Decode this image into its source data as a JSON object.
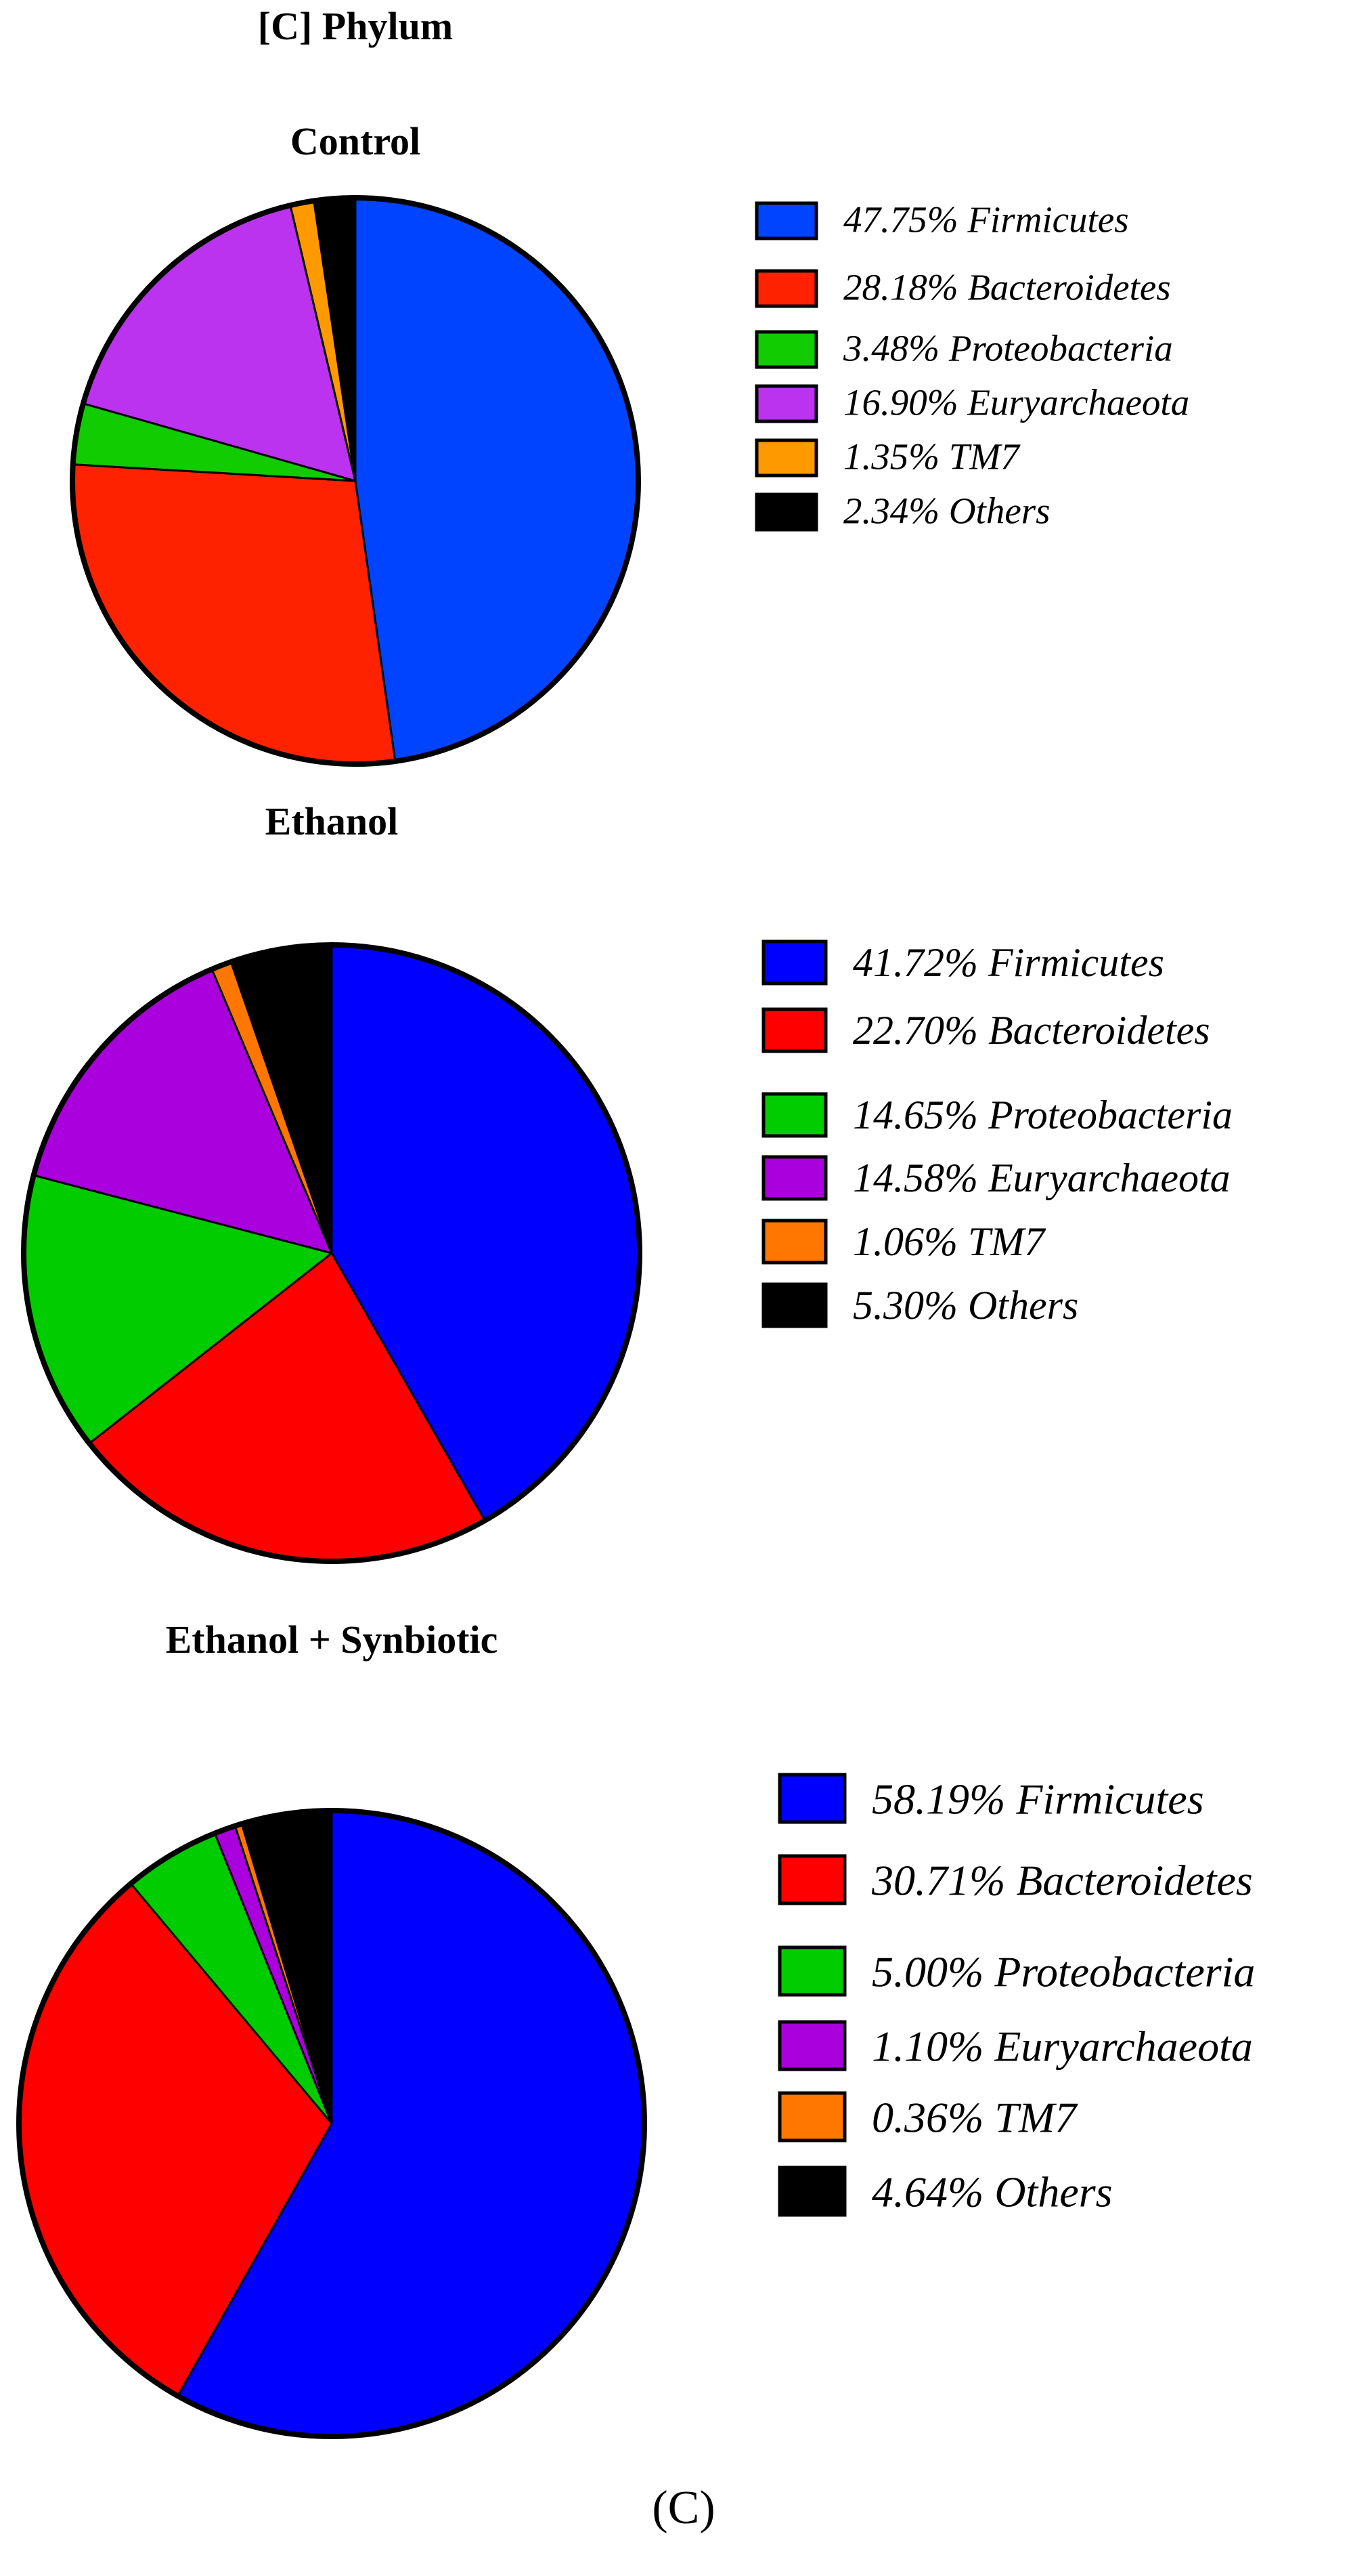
{
  "figure": {
    "panel_title": "[C] Phylum",
    "panel_caption": "(C)"
  },
  "chart_data": [
    {
      "type": "pie",
      "title": "Control",
      "start": "12 o'clock, clockwise",
      "categories": [
        "Firmicutes",
        "Bacteroidetes",
        "Proteobacteria",
        "Euryarchaeota",
        "TM7",
        "Others"
      ],
      "values": [
        47.75,
        28.18,
        3.48,
        16.9,
        1.35,
        2.34
      ],
      "legend_labels": [
        "47.75%  Firmicutes",
        "28.18%  Bacteroidetes",
        "3.48%  Proteobacteria",
        "16.90%  Euryarchaeota",
        "1.35%  TM7",
        "2.34%  Others"
      ],
      "colors": [
        "#0044ff",
        "#ff2200",
        "#11cc00",
        "#bb33ee",
        "#ff9900",
        "#000000"
      ],
      "legend_placement": "right"
    },
    {
      "type": "pie",
      "title": "Ethanol",
      "start": "12 o'clock, clockwise",
      "categories": [
        "Firmicutes",
        "Bacteroidetes",
        "Proteobacteria",
        "Euryarchaeota",
        "TM7",
        "Others"
      ],
      "values": [
        41.72,
        22.7,
        14.65,
        14.58,
        1.06,
        5.3
      ],
      "legend_labels": [
        "41.72%  Firmicutes",
        "22.70%  Bacteroidetes",
        "14.65%  Proteobacteria",
        "14.58%  Euryarchaeota",
        "1.06%  TM7",
        "5.30%  Others"
      ],
      "colors": [
        "#0000ff",
        "#ff0000",
        "#00cc00",
        "#aa00dd",
        "#ff7700",
        "#000000"
      ],
      "legend_placement": "right"
    },
    {
      "type": "pie",
      "title": "Ethanol + Synbiotic",
      "start": "12 o'clock, clockwise",
      "categories": [
        "Firmicutes",
        "Bacteroidetes",
        "Proteobacteria",
        "Euryarchaeota",
        "TM7",
        "Others"
      ],
      "values": [
        58.19,
        30.71,
        5.0,
        1.1,
        0.36,
        4.64
      ],
      "legend_labels": [
        "58.19%  Firmicutes",
        "30.71%  Bacteroidetes",
        "5.00%  Proteobacteria",
        "1.10%  Euryarchaeota",
        "0.36%  TM7",
        "4.64%  Others"
      ],
      "colors": [
        "#0000ff",
        "#ff0000",
        "#00cc00",
        "#aa00dd",
        "#ff7700",
        "#000000"
      ],
      "legend_placement": "right"
    }
  ]
}
